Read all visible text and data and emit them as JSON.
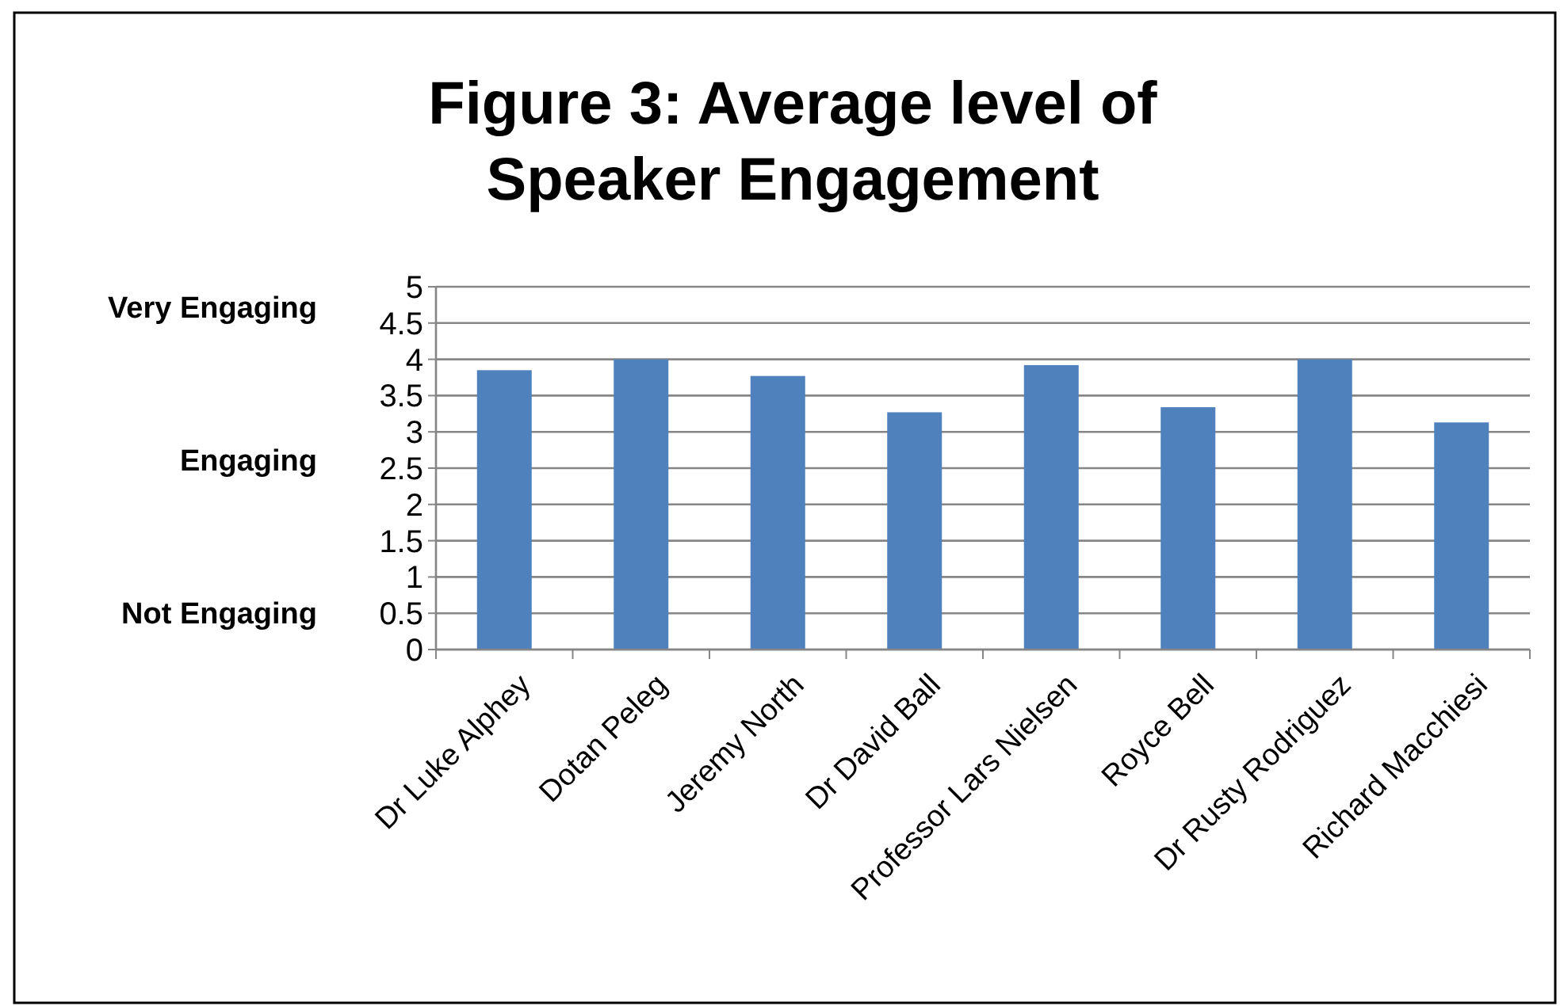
{
  "chart_data": {
    "type": "bar",
    "title": "Figure 3: Average level of Speaker Engagement",
    "categories": [
      "Dr Luke Alphey",
      "Dotan Peleg",
      "Jeremy North",
      "Dr David Ball",
      "Professor Lars Nielsen",
      "Royce Bell",
      "Dr Rusty Rodriguez",
      "Richard Macchiesi"
    ],
    "values": [
      3.85,
      4.0,
      3.77,
      3.27,
      3.92,
      3.34,
      4.0,
      3.13
    ],
    "color": "#4f81bd",
    "ylim": [
      0,
      5
    ],
    "yticks": [
      0,
      0.5,
      1,
      1.5,
      2,
      2.5,
      3,
      3.5,
      4,
      4.5,
      5
    ],
    "grid": "y",
    "annotations": [
      "Very Engaging",
      "Engaging",
      "Not Engaging"
    ]
  }
}
